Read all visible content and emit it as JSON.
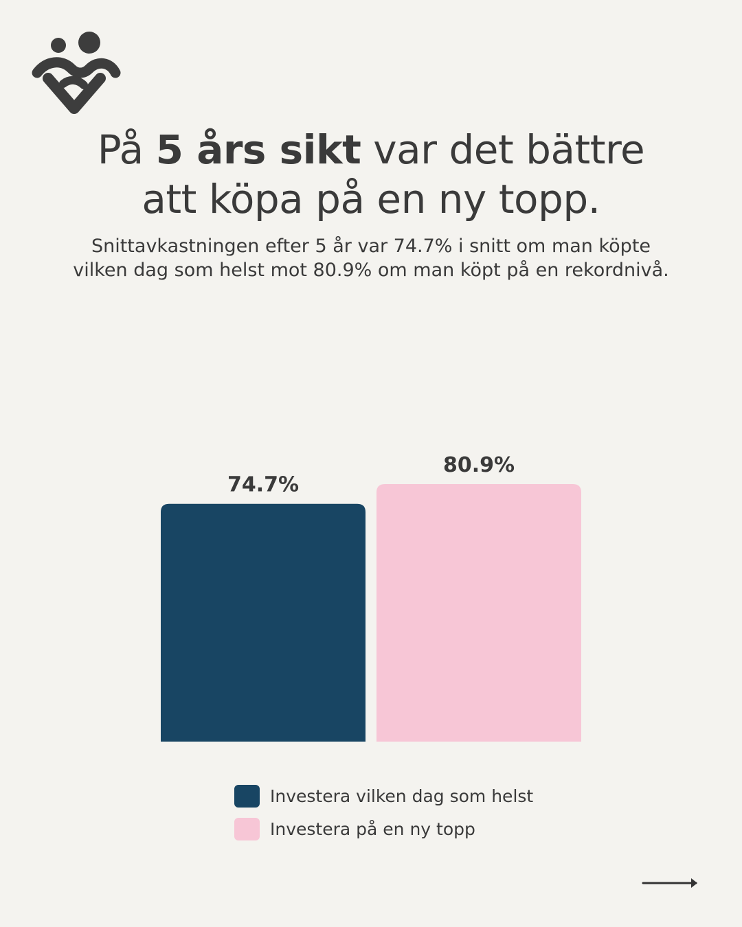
{
  "headline": {
    "line1_pre": "På ",
    "line1_bold": "5 års sikt",
    "line1_post": " var det bättre",
    "line2": "att köpa på en ny topp."
  },
  "subtitle": "Snittavkastningen efter 5 år var 74.7% i snitt om man köpte vilken dag som helst mot 80.9% om man köpt på en rekordnivå.",
  "chart_data": {
    "type": "bar",
    "categories": [
      "Investera vilken dag som helst",
      "Investera på en ny topp"
    ],
    "values": [
      74.7,
      80.9
    ],
    "value_labels": [
      "74.7%",
      "80.9%"
    ],
    "colors": [
      "#184563",
      "#f7c6d6"
    ],
    "title": "",
    "xlabel": "",
    "ylabel": "",
    "ylim": [
      0,
      96
    ],
    "grid": false,
    "legend_position": "bottom"
  },
  "legend": {
    "items": [
      {
        "label": "Investera vilken dag som helst",
        "color": "#184563"
      },
      {
        "label": "Investera på en ny topp",
        "color": "#f7c6d6"
      }
    ]
  },
  "icons": {
    "logo": "people-heart-logo",
    "next": "arrow-right-icon"
  }
}
